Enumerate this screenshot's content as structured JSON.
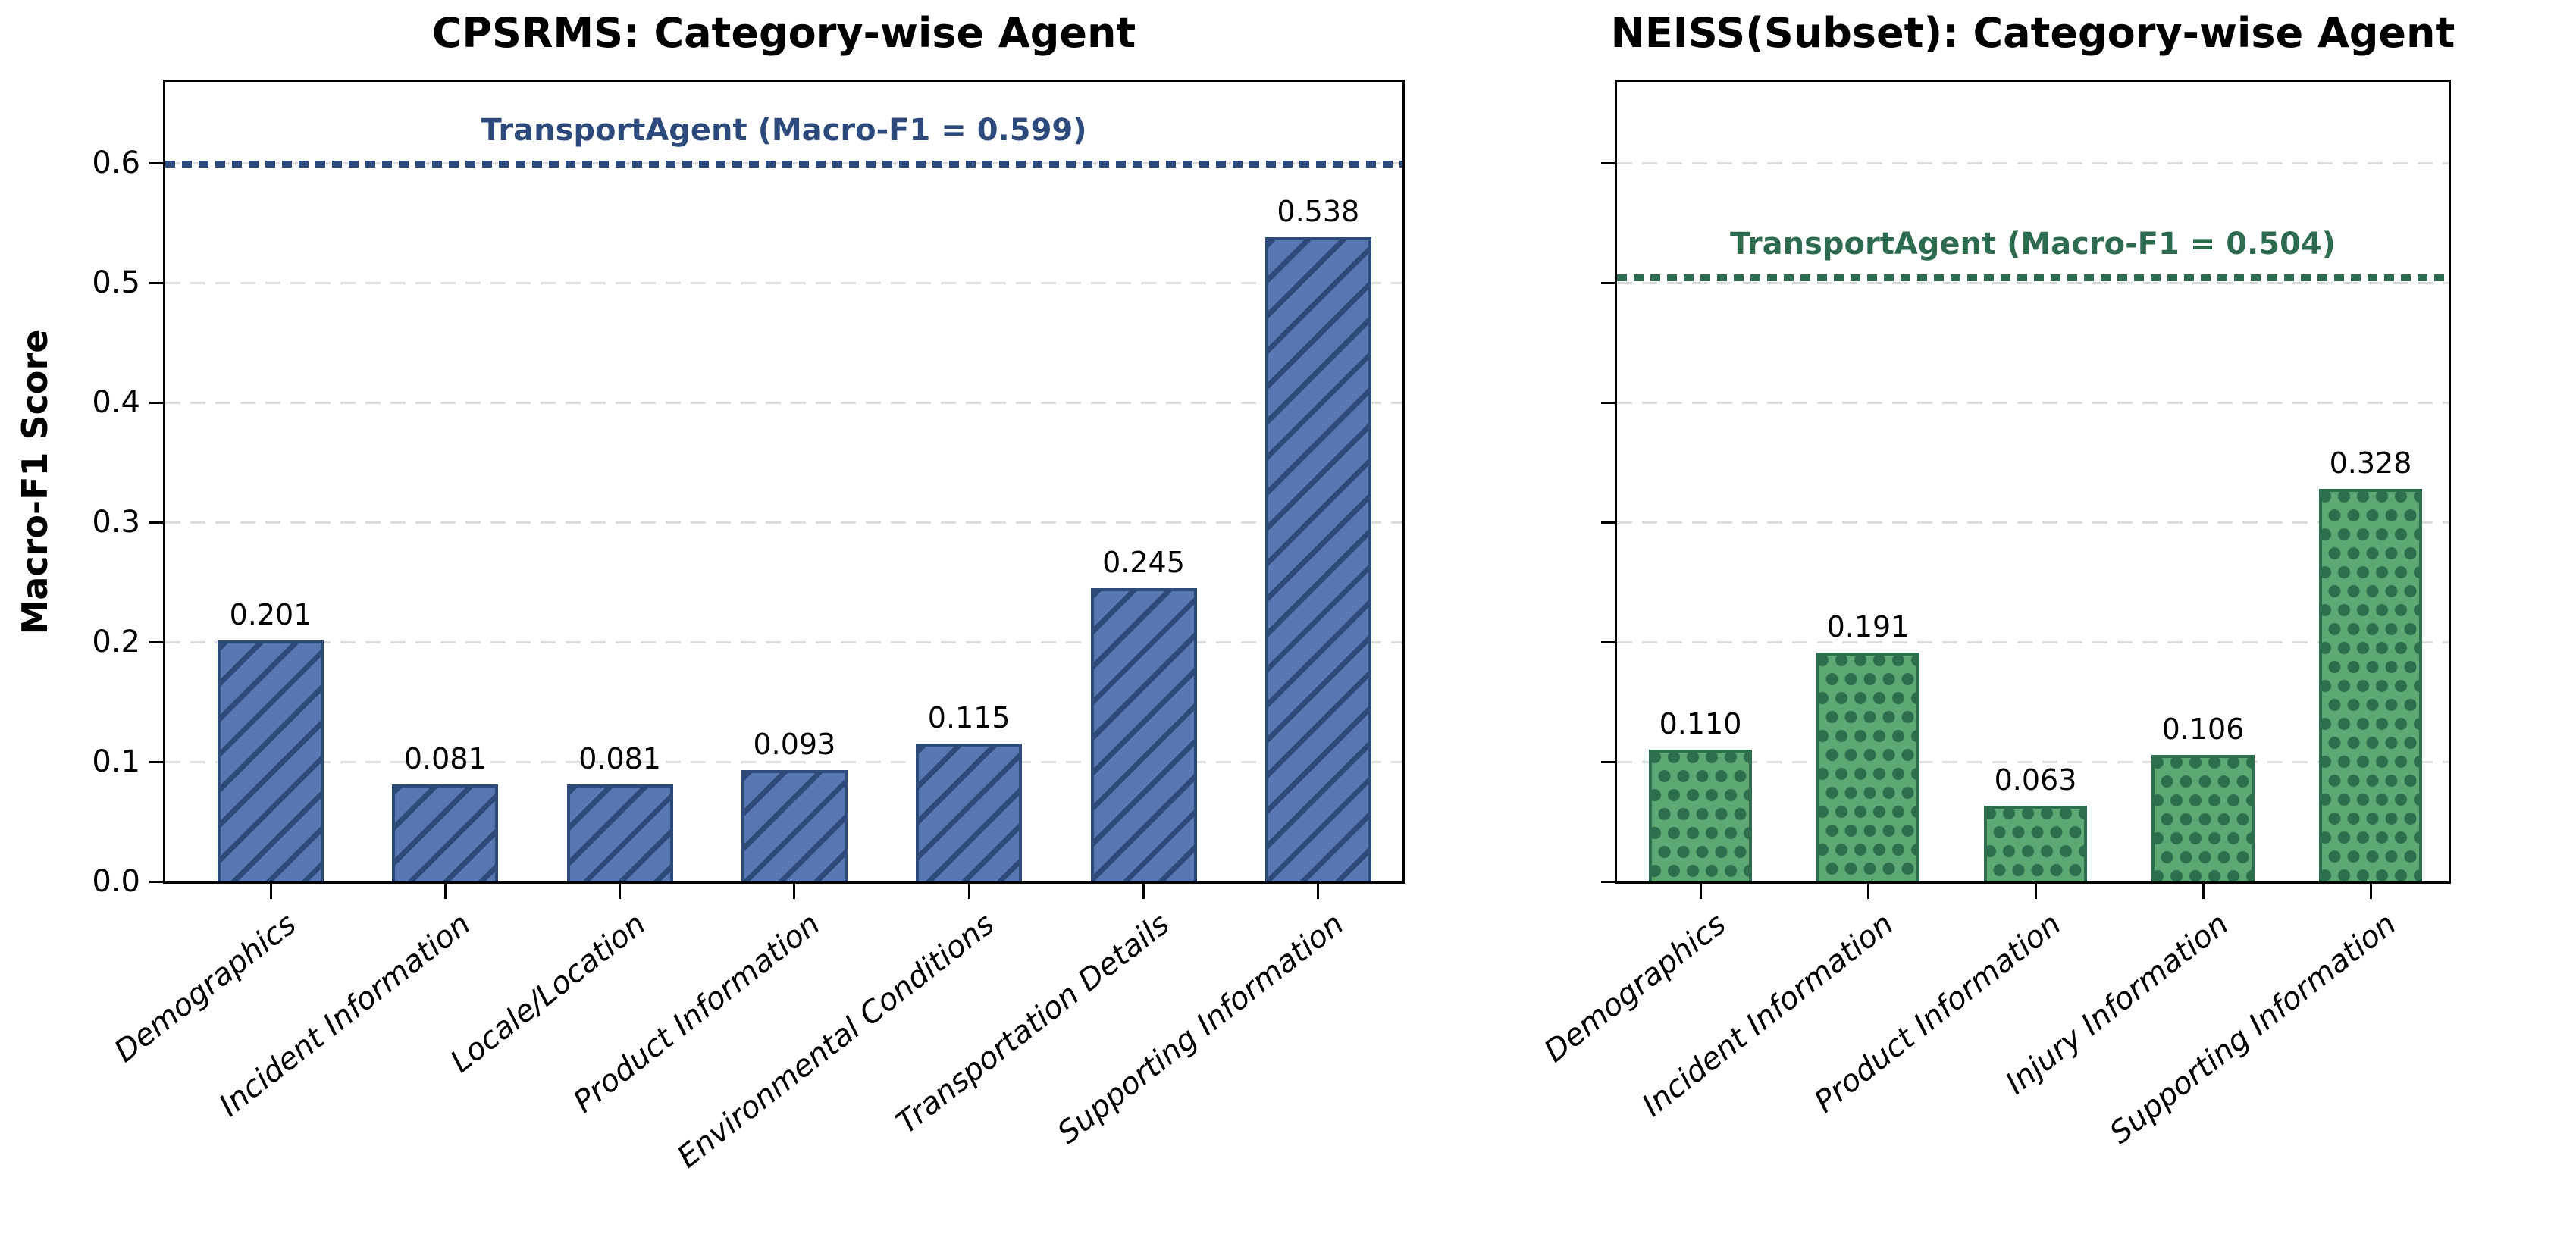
{
  "figure": {
    "ylabel": "Macro-F1 Score",
    "y_tick_labels": [
      "0.0",
      "0.1",
      "0.2",
      "0.3",
      "0.4",
      "0.5",
      "0.6"
    ],
    "background_color": "#ffffff",
    "grid_color": "#dcdcdc",
    "spine_color": "#000000"
  },
  "chart_data": [
    {
      "type": "bar",
      "title": "CPSRMS: Category-wise Agent",
      "xlabel": "",
      "ylabel": "Macro-F1 Score",
      "ylim": [
        0,
        0.671
      ],
      "grid": true,
      "legend_position": "none",
      "categories": [
        "Demographics",
        "Incident Information",
        "Locale/Location",
        "Product Information",
        "Environmental Conditions",
        "Transportation Details",
        "Supporting Information"
      ],
      "values": [
        0.201,
        0.081,
        0.081,
        0.093,
        0.115,
        0.245,
        0.538
      ],
      "value_labels": [
        "0.201",
        "0.081",
        "0.081",
        "0.093",
        "0.115",
        "0.245",
        "0.538"
      ],
      "bar_color": "#5878b4",
      "bar_edge_color": "#2e4a78",
      "hatch": "diagonal-stripes",
      "reference_line": {
        "label": "TransportAgent (Macro-F1 = 0.599)",
        "value": 0.599,
        "color": "#2c4a7c",
        "style": "dotted"
      }
    },
    {
      "type": "bar",
      "title": "NEISS(Subset): Category-wise Agent",
      "xlabel": "",
      "ylabel": "",
      "ylim": [
        0,
        0.671
      ],
      "grid": true,
      "legend_position": "none",
      "categories": [
        "Demographics",
        "Incident Information",
        "Product Information",
        "Injury Information",
        "Supporting Information"
      ],
      "values": [
        0.11,
        0.191,
        0.063,
        0.106,
        0.328
      ],
      "value_labels": [
        "0.110",
        "0.191",
        "0.063",
        "0.106",
        "0.328"
      ],
      "bar_color": "#5ca973",
      "bar_edge_color": "#2c6e4d",
      "hatch": "dots",
      "reference_line": {
        "label": "TransportAgent (Macro-F1 = 0.504)",
        "value": 0.504,
        "color": "#2d6b4f",
        "style": "dotted"
      }
    }
  ]
}
